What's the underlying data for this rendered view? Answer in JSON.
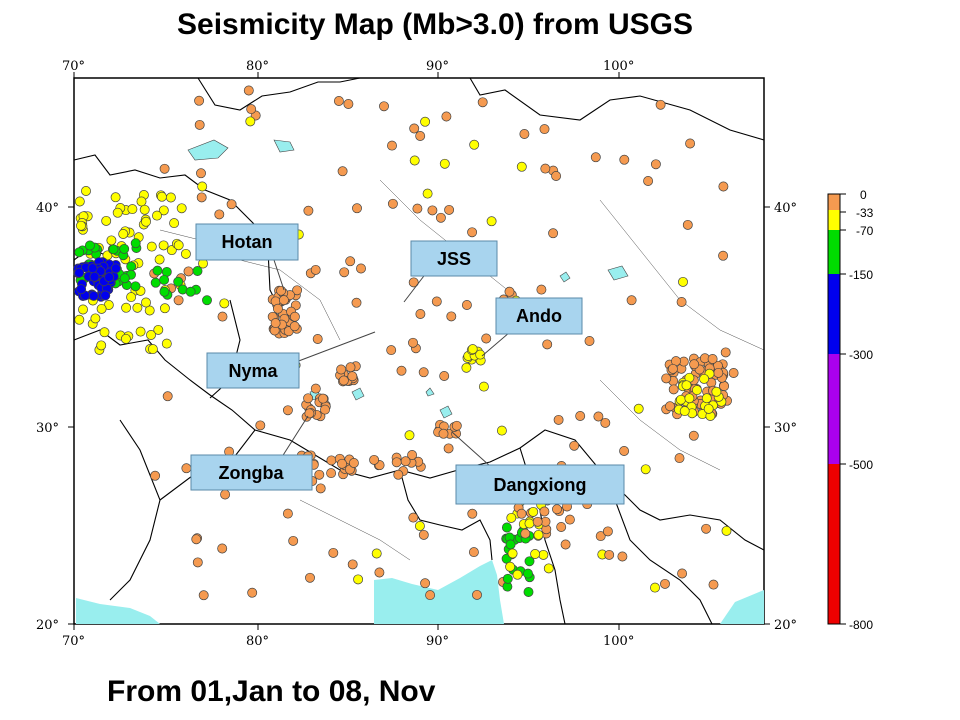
{
  "title": "Seismicity Map (Mb>3.0) from USGS",
  "subtitle": "From 01,Jan to 08, Nov",
  "map": {
    "lon_ticks_top": [
      "70°",
      "80°",
      "90°",
      "100°"
    ],
    "lon_ticks_bottom": [
      "70°",
      "80°",
      "90°",
      "100°"
    ],
    "lat_ticks_left": [
      "40°",
      "30°",
      "20°"
    ],
    "lat_ticks_right": [
      "40°",
      "30°",
      "20°"
    ],
    "colors": {
      "ocean": "#99eeee",
      "border": "#000000",
      "depth_0_33": "#f59a50",
      "depth_33_70": "#ffff00",
      "depth_70_150": "#00dd00",
      "depth_150_300": "#0000ee",
      "depth_300_500": "#aa00ee",
      "depth_500_800": "#ee0000"
    }
  },
  "callouts": {
    "hotan": "Hotan",
    "jss": "JSS",
    "ando": "Ando",
    "nyma": "Nyma",
    "zongba": "Zongba",
    "dangxiong": "Dangxiong"
  },
  "depth_scale": {
    "labels": [
      "0",
      "-33",
      "-70",
      "-150",
      "-300",
      "-500",
      "-800"
    ]
  }
}
